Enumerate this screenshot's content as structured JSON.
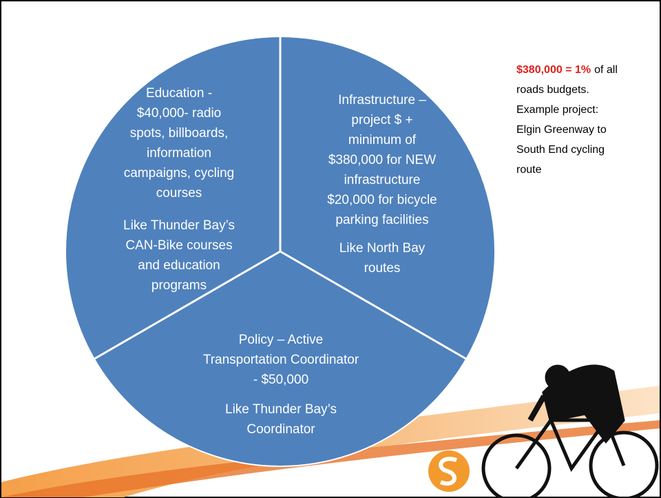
{
  "segments": [
    {
      "paragraphs": [
        [
          "Education -",
          "$40,000- radio",
          "spots, billboards,",
          "information",
          "campaigns, cycling",
          "courses"
        ],
        [
          "Like Thunder Bay’s",
          "CAN-Bike courses",
          "and education",
          "programs"
        ]
      ]
    },
    {
      "paragraphs": [
        [
          "Infrastructure –",
          "project $ +",
          "minimum of",
          "$380,000 for NEW",
          "infrastructure",
          "$20,000 for  bicycle",
          "parking facilities"
        ],
        [
          "Like North Bay",
          "routes"
        ]
      ]
    },
    {
      "paragraphs": [
        [
          "Policy –  Active",
          "Transportation Coordinator",
          "- $50,000"
        ],
        [
          "Like Thunder Bay’s",
          "Coordinator"
        ]
      ]
    }
  ],
  "note": {
    "highlight": "$380,000 = 1%",
    "lines": [
      "of all",
      "roads budgets.",
      "Example project:",
      "Elgin Greenway to",
      "South End cycling",
      "route"
    ]
  }
}
